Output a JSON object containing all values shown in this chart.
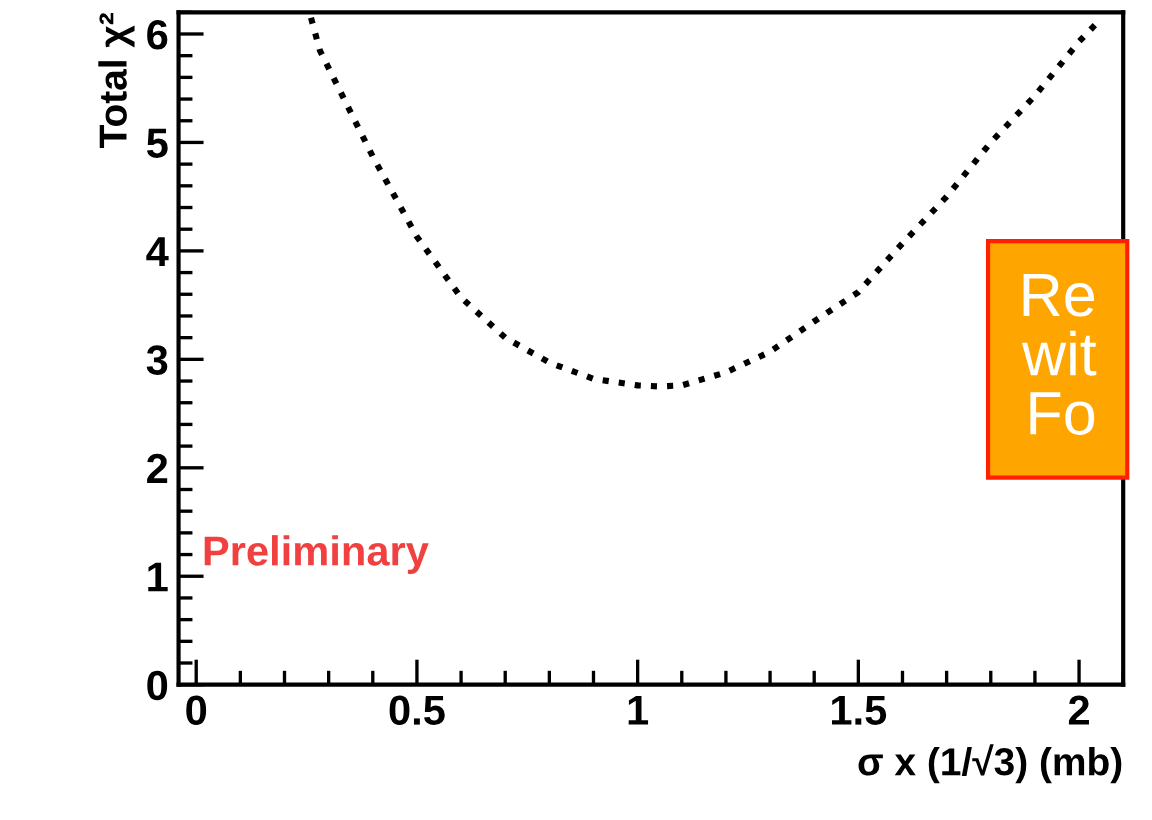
{
  "chart_data": {
    "type": "line",
    "xlabel": "σ x (1/√3) (mb)",
    "ylabel": "Total χ²",
    "x": [
      0.26,
      0.28,
      0.4,
      0.5,
      0.6,
      0.7,
      0.8,
      0.9,
      1.0,
      1.05,
      1.1,
      1.2,
      1.3,
      1.4,
      1.5,
      1.6,
      1.7,
      1.8,
      1.9,
      2.0,
      2.04
    ],
    "series": [
      {
        "color": "#000000",
        "values": [
          6.15,
          5.85,
          4.87,
          4.13,
          3.57,
          3.2,
          2.97,
          2.82,
          2.76,
          2.75,
          2.76,
          2.88,
          3.07,
          3.35,
          3.62,
          4.07,
          4.5,
          5.0,
          5.43,
          5.93,
          6.1
        ]
      }
    ],
    "line_style": "dotted",
    "marker": "none",
    "grid": false,
    "legend": false,
    "xlim": [
      -0.04,
      2.1
    ],
    "ylim": [
      0,
      6.2
    ],
    "xticks": [
      0,
      0.5,
      1,
      1.5,
      2
    ],
    "yticks": [
      0,
      1,
      2,
      3,
      4,
      5,
      6
    ],
    "annotations": [
      "Preliminary",
      "Re\nwit\nFo"
    ]
  }
}
